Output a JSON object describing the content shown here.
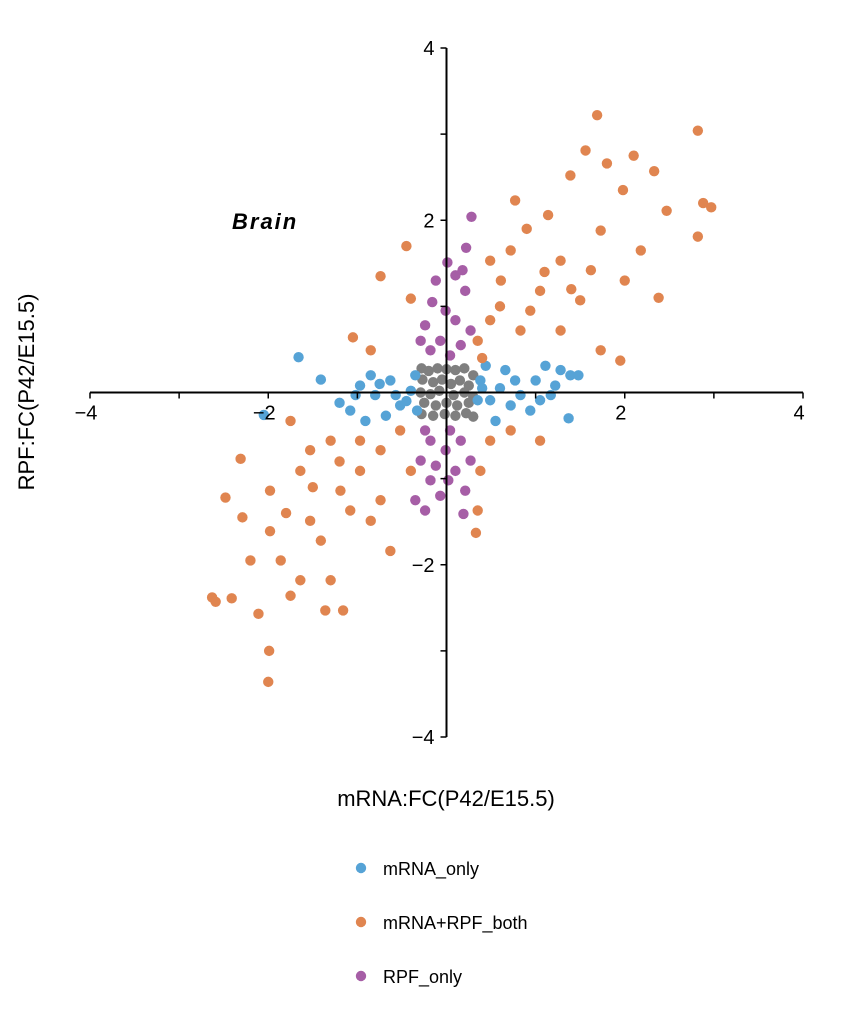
{
  "chart_data": {
    "type": "scatter",
    "xlabel": "mRNA:FC(P42/E15.5)",
    "ylabel": "RPF:FC(P42/E15.5)",
    "annotation": "Brain",
    "xlim": [
      -4,
      4
    ],
    "ylim": [
      -4,
      4
    ],
    "x_ticks": [
      -4,
      -2,
      2,
      4
    ],
    "y_ticks": [
      4,
      2,
      -2,
      -4
    ],
    "x_tick_labels": [
      "−4",
      "−2",
      "2",
      "4"
    ],
    "y_tick_labels": [
      "4",
      "2",
      "−2",
      "−4"
    ],
    "grid": false,
    "legend_position": "bottom",
    "series": [
      {
        "color": "#7f7f7f",
        "points": [
          [
            -0.28,
            0.28
          ],
          [
            -0.2,
            0.25
          ],
          [
            -0.1,
            0.28
          ],
          [
            0.0,
            0.27
          ],
          [
            0.1,
            0.26
          ],
          [
            0.2,
            0.28
          ],
          [
            0.3,
            0.2
          ],
          [
            -0.27,
            0.15
          ],
          [
            -0.15,
            0.12
          ],
          [
            -0.05,
            0.15
          ],
          [
            0.05,
            0.1
          ],
          [
            0.15,
            0.14
          ],
          [
            0.25,
            0.08
          ],
          [
            -0.29,
            0.0
          ],
          [
            -0.18,
            -0.02
          ],
          [
            -0.08,
            0.02
          ],
          [
            0.08,
            -0.03
          ],
          [
            0.2,
            0.0
          ],
          [
            0.3,
            -0.05
          ],
          [
            -0.25,
            -0.12
          ],
          [
            -0.12,
            -0.15
          ],
          [
            0.0,
            -0.12
          ],
          [
            0.12,
            -0.15
          ],
          [
            0.25,
            -0.12
          ],
          [
            -0.28,
            -0.25
          ],
          [
            -0.15,
            -0.27
          ],
          [
            -0.02,
            -0.25
          ],
          [
            0.1,
            -0.27
          ],
          [
            0.22,
            -0.24
          ],
          [
            0.3,
            -0.28
          ]
        ]
      },
      {
        "name": "mRNA_only",
        "color": "#56a3d6",
        "points": [
          [
            -1.41,
            0.15
          ],
          [
            -1.66,
            0.41
          ],
          [
            -2.05,
            -0.26
          ],
          [
            -1.08,
            -0.21
          ],
          [
            -0.97,
            0.08
          ],
          [
            -0.8,
            -0.03
          ],
          [
            -0.63,
            0.14
          ],
          [
            -0.52,
            -0.15
          ],
          [
            -0.4,
            0.02
          ],
          [
            -0.68,
            -0.27
          ],
          [
            -0.91,
            -0.33
          ],
          [
            -1.02,
            -0.03
          ],
          [
            -0.35,
            0.2
          ],
          [
            -0.33,
            -0.21
          ],
          [
            -0.57,
            -0.03
          ],
          [
            -0.85,
            0.2
          ],
          [
            -0.45,
            -0.1
          ],
          [
            -0.75,
            0.1
          ],
          [
            -1.2,
            -0.12
          ],
          [
            0.38,
            0.14
          ],
          [
            0.49,
            -0.09
          ],
          [
            0.66,
            0.26
          ],
          [
            0.83,
            -0.03
          ],
          [
            1.0,
            0.14
          ],
          [
            1.11,
            0.31
          ],
          [
            1.22,
            0.08
          ],
          [
            1.39,
            0.2
          ],
          [
            1.48,
            0.2
          ],
          [
            1.37,
            -0.3
          ],
          [
            0.55,
            -0.33
          ],
          [
            0.72,
            -0.15
          ],
          [
            0.94,
            -0.21
          ],
          [
            1.17,
            -0.03
          ],
          [
            1.28,
            0.26
          ],
          [
            0.44,
            0.31
          ],
          [
            0.77,
            0.14
          ],
          [
            1.05,
            -0.09
          ],
          [
            0.35,
            -0.09
          ],
          [
            0.4,
            0.05
          ],
          [
            0.6,
            0.05
          ]
        ]
      },
      {
        "name": "mRNA+RPF_both",
        "color": "#e08550",
        "points": [
          [
            1.69,
            3.22
          ],
          [
            2.82,
            3.04
          ],
          [
            1.56,
            2.81
          ],
          [
            1.8,
            2.66
          ],
          [
            2.1,
            2.75
          ],
          [
            2.33,
            2.57
          ],
          [
            2.88,
            2.2
          ],
          [
            2.97,
            2.15
          ],
          [
            2.82,
            1.81
          ],
          [
            2.38,
            1.1
          ],
          [
            2.47,
            2.11
          ],
          [
            1.98,
            2.35
          ],
          [
            1.39,
            2.52
          ],
          [
            1.14,
            2.06
          ],
          [
            0.77,
            2.23
          ],
          [
            -0.45,
            1.7
          ],
          [
            -0.74,
            1.35
          ],
          [
            -0.4,
            1.09
          ],
          [
            -1.05,
            0.64
          ],
          [
            -0.85,
            0.49
          ],
          [
            1.95,
            0.37
          ],
          [
            1.73,
            0.49
          ],
          [
            1.5,
            1.07
          ],
          [
            1.05,
            1.18
          ],
          [
            0.61,
            1.3
          ],
          [
            0.49,
            0.84
          ],
          [
            0.35,
            0.6
          ],
          [
            0.83,
            0.72
          ],
          [
            1.28,
            1.53
          ],
          [
            1.73,
            1.88
          ],
          [
            2.18,
            1.65
          ],
          [
            0.49,
            1.53
          ],
          [
            0.72,
            1.65
          ],
          [
            0.94,
            0.95
          ],
          [
            1.28,
            0.72
          ],
          [
            1.62,
            1.42
          ],
          [
            0.9,
            1.9
          ],
          [
            1.1,
            1.4
          ],
          [
            0.6,
            1.0
          ],
          [
            1.4,
            1.2
          ],
          [
            2.0,
            1.3
          ],
          [
            0.4,
            0.4
          ],
          [
            -2.63,
            -2.38
          ],
          [
            -2.59,
            -2.43
          ],
          [
            -2.41,
            -2.39
          ],
          [
            -2.11,
            -2.57
          ],
          [
            -1.99,
            -3.0
          ],
          [
            -2.0,
            -3.36
          ],
          [
            -2.31,
            -0.77
          ],
          [
            -2.48,
            -1.22
          ],
          [
            -2.29,
            -1.45
          ],
          [
            -1.98,
            -1.14
          ],
          [
            -1.75,
            -0.33
          ],
          [
            -1.64,
            -0.91
          ],
          [
            -1.53,
            -1.49
          ],
          [
            -1.36,
            -2.53
          ],
          [
            -1.16,
            -2.53
          ],
          [
            -1.3,
            -2.18
          ],
          [
            -1.75,
            -2.36
          ],
          [
            -1.86,
            -1.95
          ],
          [
            -1.41,
            -1.72
          ],
          [
            -1.08,
            -1.37
          ],
          [
            -0.97,
            -0.91
          ],
          [
            -0.74,
            -0.67
          ],
          [
            -0.52,
            -0.44
          ],
          [
            -0.4,
            -0.91
          ],
          [
            -0.63,
            -1.84
          ],
          [
            -0.85,
            -1.49
          ],
          [
            -1.19,
            -1.14
          ],
          [
            -1.3,
            -0.56
          ],
          [
            -1.53,
            -0.67
          ],
          [
            -1.98,
            -1.61
          ],
          [
            -2.2,
            -1.95
          ],
          [
            -1.64,
            -2.18
          ],
          [
            -0.97,
            -0.56
          ],
          [
            -0.74,
            -1.25
          ],
          [
            -1.5,
            -1.1
          ],
          [
            -1.8,
            -1.4
          ],
          [
            -1.2,
            -0.8
          ],
          [
            0.33,
            -1.63
          ],
          [
            0.49,
            -0.56
          ],
          [
            0.38,
            -0.91
          ],
          [
            0.72,
            -0.44
          ],
          [
            1.05,
            -0.56
          ],
          [
            0.35,
            -1.37
          ]
        ]
      },
      {
        "name": "RPF_only",
        "color": "#a65ea6",
        "points": [
          [
            0.28,
            2.04
          ],
          [
            0.22,
            1.68
          ],
          [
            0.01,
            1.51
          ],
          [
            -0.16,
            1.05
          ],
          [
            -0.24,
            0.78
          ],
          [
            -0.07,
            0.6
          ],
          [
            0.1,
            0.84
          ],
          [
            0.21,
            1.18
          ],
          [
            -0.18,
            0.49
          ],
          [
            0.04,
            0.43
          ],
          [
            0.16,
            0.55
          ],
          [
            -0.01,
            0.95
          ],
          [
            0.27,
            0.72
          ],
          [
            -0.29,
            0.6
          ],
          [
            -0.12,
            1.3
          ],
          [
            0.1,
            1.36
          ],
          [
            0.18,
            1.42
          ],
          [
            -0.18,
            -0.56
          ],
          [
            -0.01,
            -0.67
          ],
          [
            0.1,
            -0.91
          ],
          [
            -0.18,
            -1.02
          ],
          [
            -0.07,
            -1.2
          ],
          [
            -0.24,
            -1.37
          ],
          [
            0.19,
            -1.41
          ],
          [
            -0.35,
            -1.25
          ],
          [
            0.04,
            -0.44
          ],
          [
            0.16,
            -0.56
          ],
          [
            0.27,
            -0.79
          ],
          [
            -0.29,
            -0.79
          ],
          [
            -0.12,
            -0.85
          ],
          [
            0.02,
            -1.02
          ],
          [
            0.21,
            -1.14
          ],
          [
            -0.24,
            -0.44
          ]
        ]
      }
    ]
  }
}
